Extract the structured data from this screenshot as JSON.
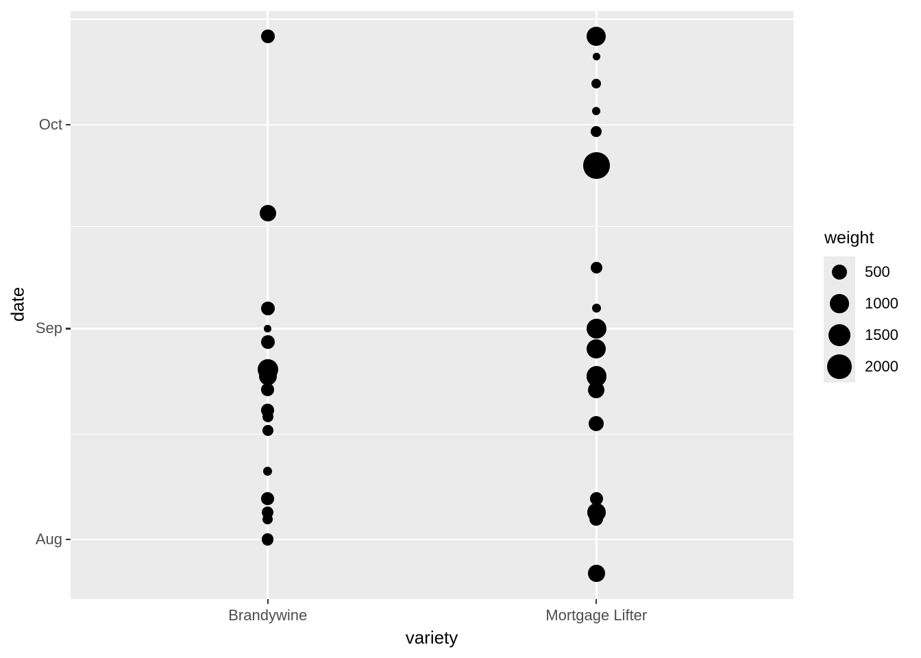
{
  "chart_data": {
    "type": "scatter",
    "title": "",
    "xlabel": "variety",
    "ylabel": "date",
    "categories": [
      "Brandywine",
      "Mortgage Lifter"
    ],
    "y_axis": {
      "tick_labels": [
        "Oct",
        "Sep",
        "Aug"
      ],
      "range": [
        "Jul 23",
        "Oct 18"
      ],
      "grid": "major and minor horizontal white gridlines on grey panel"
    },
    "legend": {
      "title": "weight",
      "position": "right",
      "entries": [
        "500",
        "1000",
        "1500",
        "2000"
      ],
      "entry_values": [
        500,
        1000,
        1500,
        2000
      ]
    },
    "series": [
      {
        "name": "Brandywine",
        "points": [
          {
            "date": "Oct 14",
            "weight": 360
          },
          {
            "date": "Sep 18",
            "weight": 660
          },
          {
            "date": "Sep 4",
            "weight": 360
          },
          {
            "date": "Sep 1",
            "weight": 10
          },
          {
            "date": "Aug 30",
            "weight": 360
          },
          {
            "date": "Aug 26",
            "weight": 1280
          },
          {
            "date": "Aug 25",
            "weight": 840
          },
          {
            "date": "Aug 23",
            "weight": 280
          },
          {
            "date": "Aug 20",
            "weight": 280
          },
          {
            "date": "Aug 19",
            "weight": 150
          },
          {
            "date": "Aug 17",
            "weight": 150
          },
          {
            "date": "Aug 11",
            "weight": 65
          },
          {
            "date": "Aug 7",
            "weight": 280
          },
          {
            "date": "Aug 5",
            "weight": 215
          },
          {
            "date": "Aug 4",
            "weight": 130
          },
          {
            "date": "Aug 1",
            "weight": 215
          }
        ]
      },
      {
        "name": "Mortgage Lifter",
        "points": [
          {
            "date": "Oct 14",
            "weight": 1050
          },
          {
            "date": "Oct 11",
            "weight": 12
          },
          {
            "date": "Oct 7",
            "weight": 80
          },
          {
            "date": "Oct 3",
            "weight": 32
          },
          {
            "date": "Sep 30",
            "weight": 150
          },
          {
            "date": "Sep 25",
            "weight": 2500
          },
          {
            "date": "Sep 10",
            "weight": 210
          },
          {
            "date": "Sep 4",
            "weight": 65
          },
          {
            "date": "Sep 1",
            "weight": 1200
          },
          {
            "date": "Aug 29",
            "weight": 1050
          },
          {
            "date": "Aug 25",
            "weight": 1200
          },
          {
            "date": "Aug 23",
            "weight": 660
          },
          {
            "date": "Aug 18",
            "weight": 500
          },
          {
            "date": "Aug 7",
            "weight": 280
          },
          {
            "date": "Aug 5",
            "weight": 900
          },
          {
            "date": "Aug 4",
            "weight": 360
          },
          {
            "date": "Jul 27",
            "weight": 710
          }
        ]
      }
    ]
  },
  "colors": {
    "point": "#000000",
    "panel_background": "#EBEBEB",
    "gridline": "#FFFFFF",
    "axis_text": "#4D4D4D",
    "axis_title": "#000000",
    "tick_mark": "#333333",
    "figure_background": "#FFFFFF"
  }
}
